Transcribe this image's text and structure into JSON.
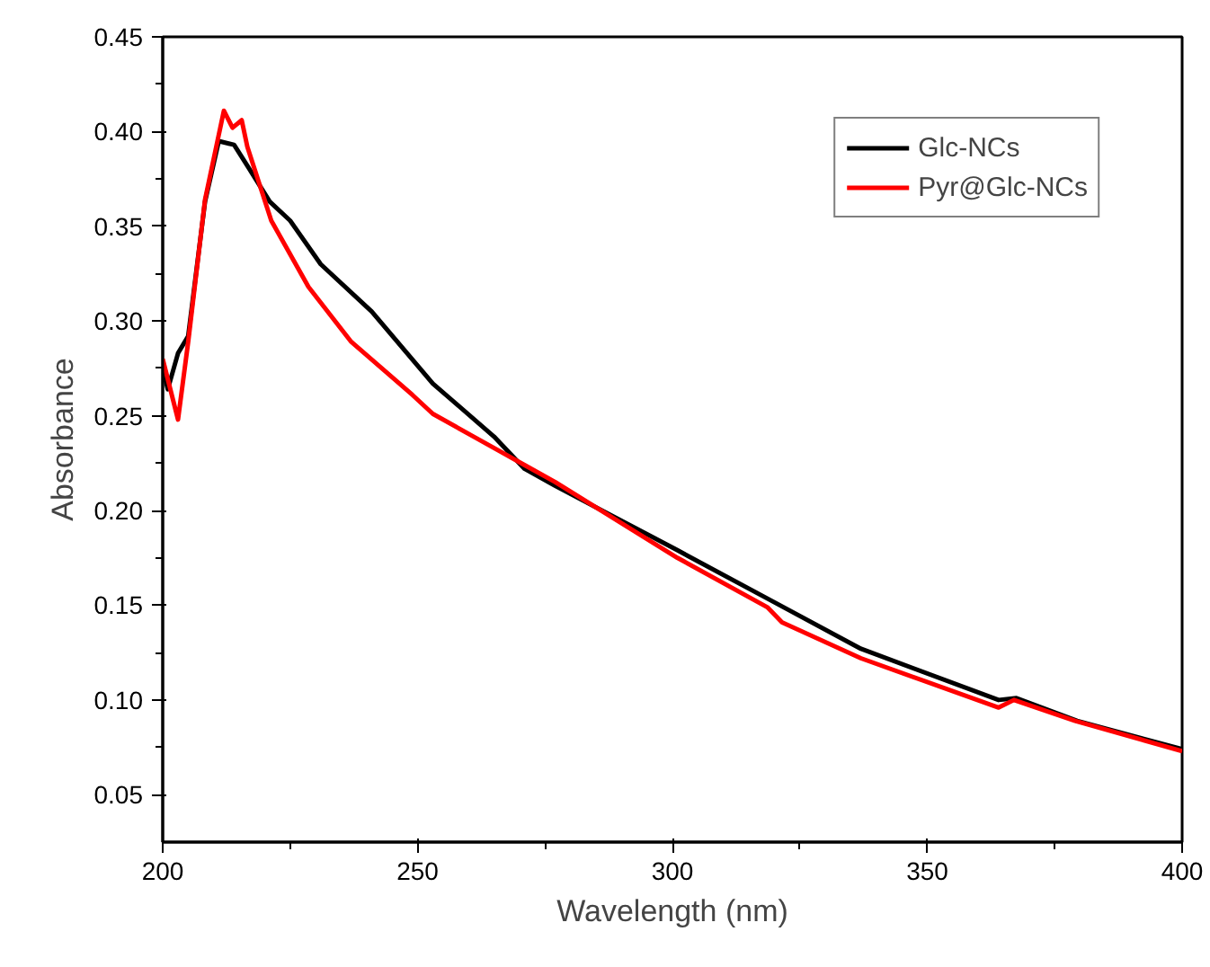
{
  "chart_data": {
    "type": "line",
    "xlabel": "Wavelength (nm)",
    "ylabel": "Absorbance",
    "xlim": [
      200,
      400
    ],
    "ylim": [
      0.025,
      0.45
    ],
    "xticks": [
      200,
      250,
      300,
      350,
      400
    ],
    "yticks": [
      {
        "value": 0.05,
        "label": "0.05"
      },
      {
        "value": 0.1,
        "label": "0.10"
      },
      {
        "value": 0.15,
        "label": "0.15"
      },
      {
        "value": 0.2,
        "label": "0.20"
      },
      {
        "value": 0.25,
        "label": "0.25"
      },
      {
        "value": 0.3,
        "label": "0.30"
      },
      {
        "value": 0.35,
        "label": "0.35"
      },
      {
        "value": 0.4,
        "label": "0.40"
      },
      {
        "value": 0.45,
        "label": "0.45"
      }
    ],
    "legend": "top right",
    "grid": false,
    "line_style": "solid",
    "marker": "none",
    "series": [
      {
        "name": "Glc-NCs",
        "color": "#000000",
        "x": [
          200,
          201,
          203,
          205,
          208.3,
          211,
          214,
          216.6,
          221,
          225,
          231,
          241,
          253,
          265,
          271,
          277,
          301,
          319,
          337,
          364,
          367.5,
          379.4,
          400
        ],
        "values": [
          0.275,
          0.264,
          0.283,
          0.292,
          0.363,
          0.395,
          0.393,
          0.382,
          0.363,
          0.353,
          0.33,
          0.305,
          0.267,
          0.239,
          0.222,
          0.213,
          0.179,
          0.153,
          0.127,
          0.1,
          0.101,
          0.089,
          0.074
        ]
      },
      {
        "name": "Pyr@Glc-NCs",
        "color": "#ff0000",
        "x": [
          200,
          203,
          205,
          208.3,
          212,
          213.7,
          215.5,
          216.6,
          221.3,
          228.6,
          237,
          249,
          253,
          261,
          271,
          277,
          301,
          318.6,
          321.5,
          337,
          364,
          367,
          379,
          400
        ],
        "values": [
          0.28,
          0.248,
          0.289,
          0.364,
          0.411,
          0.402,
          0.406,
          0.392,
          0.353,
          0.318,
          0.289,
          0.261,
          0.251,
          0.239,
          0.224,
          0.215,
          0.175,
          0.149,
          0.141,
          0.122,
          0.096,
          0.1,
          0.089,
          0.073
        ]
      }
    ]
  }
}
